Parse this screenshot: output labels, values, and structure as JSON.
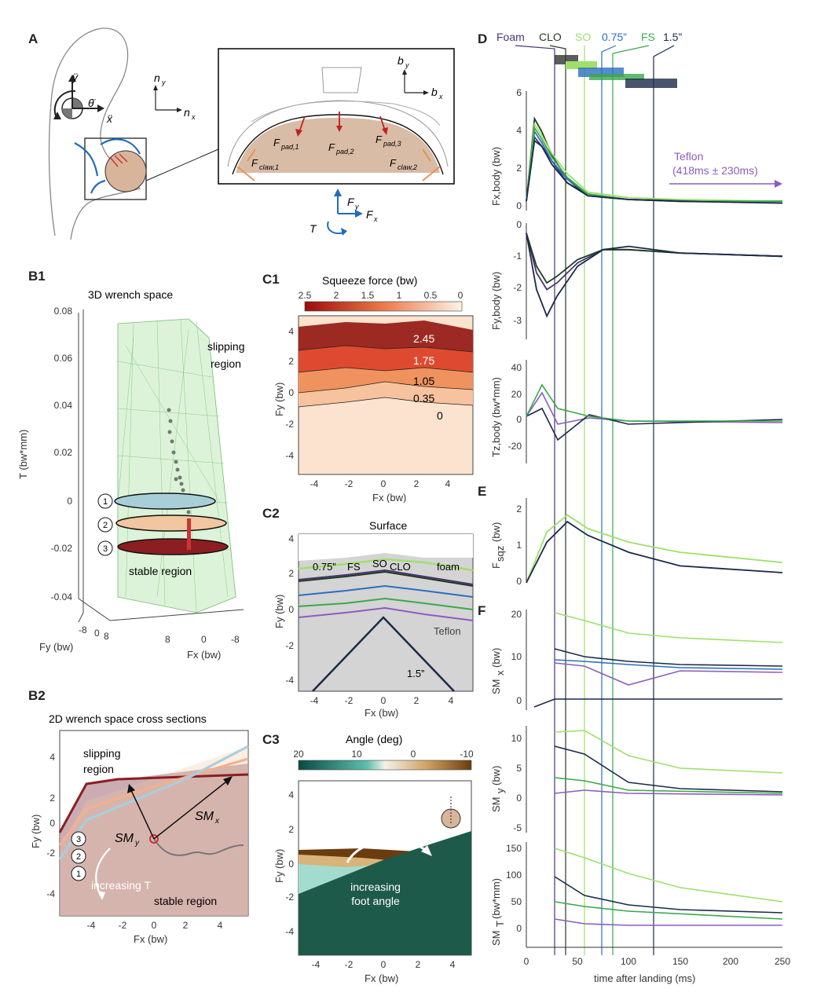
{
  "panels": {
    "A": {
      "label": "A",
      "axes": {
        "ny": "n",
        "ny_sub": "y",
        "nx": "n",
        "nx_sub": "x",
        "by": "b",
        "by_sub": "y",
        "bx": "b",
        "bx_sub": "x"
      },
      "motion": {
        "y": "ÿ",
        "theta": "θ̈",
        "x": "ẍ"
      },
      "forces": {
        "pad1": "F",
        "pad1_sub": "pad,1",
        "pad2": "F",
        "pad2_sub": "pad,2",
        "pad3": "F",
        "pad3_sub": "pad,3",
        "claw1": "F",
        "claw1_sub": "claw,1",
        "claw2": "F",
        "claw2_sub": "claw,2",
        "fy": "F",
        "fy_sub": "y",
        "fx": "F",
        "fx_sub": "x",
        "t": "T"
      }
    },
    "B1": {
      "label": "B1",
      "title": "3D wrench space",
      "ylabel": "T (bw*mm)",
      "yticks": [
        "0.08",
        "0.06",
        "0.04",
        "0.02",
        "0",
        "-0.02",
        "-0.04"
      ],
      "fy_label": "Fy (bw)",
      "fy_ticks": [
        "-8",
        "0",
        "8"
      ],
      "fx_label": "Fx (bw)",
      "fx_ticks": [
        "8",
        "0",
        "-8"
      ],
      "slipping": "slipping\nregion",
      "slipping_l1": "slipping",
      "slipping_l2": "region",
      "stable": "stable region",
      "markers": [
        "1",
        "2",
        "3"
      ]
    },
    "B2": {
      "label": "B2",
      "title": "2D wrench space cross sections",
      "ylabel": "Fy (bw)",
      "xlabel": "Fx (bw)",
      "yticks": [
        "4",
        "2",
        "0",
        "-2",
        "-4"
      ],
      "xticks": [
        "-4",
        "-2",
        "0",
        "2",
        "4"
      ],
      "slipping_l1": "slipping",
      "slipping_l2": "region",
      "stable": "stable region",
      "smy": "SM",
      "smy_sub": "y",
      "smx": "SM",
      "smx_sub": "x",
      "increasing": "increasing T",
      "markers": [
        "3",
        "2",
        "1"
      ]
    },
    "C1": {
      "label": "C1",
      "title": "Squeeze force (bw)",
      "cbar_ticks": [
        "2.5",
        "2",
        "1.5",
        "1",
        "0.5",
        "0"
      ],
      "ylabel": "Fy (bw)",
      "xlabel": "Fx (bw)",
      "yticks": [
        "4",
        "2",
        "0",
        "-2",
        "-4"
      ],
      "xticks": [
        "-4",
        "-2",
        "0",
        "2",
        "4"
      ],
      "contours": [
        "2.45",
        "1.75",
        "1.05",
        "0.35",
        "0"
      ]
    },
    "C2": {
      "label": "C2",
      "title": "Surface",
      "ylabel": "Fy (bw)",
      "xlabel": "Fx (bw)",
      "yticks": [
        "4",
        "2",
        "0",
        "-2",
        "-4"
      ],
      "xticks": [
        "-4",
        "-2",
        "0",
        "2",
        "4"
      ],
      "labels": {
        "in075": "0.75”",
        "fs": "FS",
        "clo": "CLO",
        "foam": "foam",
        "so": "SO",
        "teflon": "Teflon",
        "in15": "1.5”"
      }
    },
    "C3": {
      "label": "C3",
      "title": "Angle (deg)",
      "cbar_ticks": [
        "20",
        "10",
        "0",
        "-10"
      ],
      "ylabel": "Fy (bw)",
      "xlabel": "Fx (bw)",
      "yticks": [
        "4",
        "2",
        "0",
        "-2",
        "-4"
      ],
      "xticks": [
        "-4",
        "-2",
        "0",
        "2",
        "4"
      ],
      "note_l1": "increasing",
      "note_l2": "foot angle"
    },
    "D": {
      "label": "D",
      "legend": {
        "foam": "Foam",
        "clo": "CLO",
        "so": "SO",
        "in075": "0.75”",
        "fs": "FS",
        "in15": "1.5”"
      },
      "teflon_l1": "Teflon",
      "teflon_l2": "(418ms ± 230ms)",
      "fx_label": "Fx,body (bw)",
      "fx_ticks": [
        "6",
        "4",
        "2",
        "0"
      ],
      "fy_label": "Fy,body (bw)",
      "fy_ticks": [
        "0",
        "-1",
        "-2",
        "-3"
      ],
      "tz_label": "Tz,body (bw*mm)",
      "tz_ticks": [
        "40",
        "20",
        "0",
        "-20"
      ]
    },
    "E": {
      "label": "E",
      "ylabel": "F",
      "ylabel_sub": "sqz",
      "ylabel_unit": "(bw)",
      "yticks": [
        "2",
        "1",
        "0"
      ]
    },
    "F": {
      "label": "F",
      "smx_label": "SM",
      "smx_sub": "x",
      "smx_unit": "(bw)",
      "smx_ticks": [
        "20",
        "10",
        "0"
      ],
      "smy_label": "SM",
      "smy_sub": "y",
      "smy_unit": "(bw)",
      "smy_ticks": [
        "10",
        "5",
        "0",
        "-5"
      ],
      "smt_label": "SM",
      "smt_sub": "T",
      "smt_unit": "(bw*mm)",
      "smt_ticks": [
        "150",
        "100",
        "50",
        "0"
      ],
      "xticks": [
        "0",
        "50",
        "100",
        "150",
        "200",
        "250"
      ],
      "xlabel": "time after landing (ms)"
    }
  },
  "colors": {
    "foam": "#4a3470",
    "clo": "#1f3d22",
    "so": "#9ee06a",
    "in075": "#2a6fc0",
    "fs": "#3aa84c",
    "in15": "#1b2a4a",
    "teflon": "#8c5cc0"
  },
  "chart_data": [
    {
      "type": "line",
      "panel": "D-Fx",
      "xlim": [
        0,
        250
      ],
      "ylim": [
        -0.5,
        6
      ],
      "series": [
        {
          "name": "Foam",
          "x": [
            0,
            8,
            15,
            25,
            40,
            60,
            100,
            150,
            250
          ],
          "y": [
            0,
            3.5,
            3.0,
            2.2,
            1.0,
            0.4,
            0.1,
            0.05,
            0
          ]
        },
        {
          "name": "CLO",
          "x": [
            0,
            8,
            15,
            25,
            40,
            60,
            100,
            150,
            250
          ],
          "y": [
            0,
            4.5,
            3.8,
            2.5,
            1.2,
            0.3,
            0.1,
            0.05,
            0
          ]
        },
        {
          "name": "SO",
          "x": [
            0,
            8,
            15,
            25,
            40,
            60,
            100,
            150,
            250
          ],
          "y": [
            0,
            4.2,
            3.6,
            2.6,
            1.5,
            0.5,
            0.2,
            0.1,
            0
          ]
        },
        {
          "name": "0.75”",
          "x": [
            0,
            8,
            15,
            25,
            40,
            60,
            100,
            150,
            250
          ],
          "y": [
            0,
            3.8,
            3.2,
            2.2,
            1.2,
            0.4,
            0.1,
            0,
            0
          ]
        },
        {
          "name": "FS",
          "x": [
            0,
            8,
            15,
            25,
            40,
            60,
            100,
            150,
            250
          ],
          "y": [
            0,
            4.0,
            3.4,
            2.4,
            1.3,
            0.4,
            0.1,
            0,
            0
          ]
        },
        {
          "name": "1.5”",
          "x": [
            0,
            8,
            15,
            25,
            40,
            60,
            100,
            150,
            250
          ],
          "y": [
            0,
            3.3,
            3.0,
            2.0,
            1.0,
            0.3,
            0.1,
            0,
            -0.1
          ]
        }
      ]
    },
    {
      "type": "line",
      "panel": "D-Fy",
      "xlim": [
        0,
        250
      ],
      "ylim": [
        -3.5,
        0
      ],
      "series": [
        {
          "name": "Foam",
          "x": [
            0,
            10,
            20,
            30,
            50,
            75,
            100,
            150,
            250
          ],
          "y": [
            -0.3,
            -1.5,
            -2.0,
            -1.8,
            -1.2,
            -0.8,
            -0.8,
            -0.9,
            -1.0
          ]
        },
        {
          "name": "CLO",
          "x": [
            0,
            10,
            20,
            30,
            50,
            75,
            100,
            150,
            250
          ],
          "y": [
            -0.3,
            -1.3,
            -1.8,
            -1.6,
            -1.1,
            -0.8,
            -0.8,
            -0.9,
            -1.0
          ]
        },
        {
          "name": "1.5”",
          "x": [
            0,
            10,
            20,
            30,
            50,
            75,
            100,
            150,
            250
          ],
          "y": [
            -0.3,
            -2.0,
            -2.8,
            -2.2,
            -1.3,
            -0.8,
            -0.7,
            -0.9,
            -1.0
          ]
        }
      ]
    },
    {
      "type": "line",
      "panel": "E",
      "xlim": [
        0,
        250
      ],
      "ylim": [
        0,
        2.5
      ],
      "series": [
        {
          "name": "SO",
          "x": [
            0,
            20,
            40,
            60,
            100,
            150,
            250
          ],
          "y": [
            0,
            1.5,
            2.0,
            1.6,
            1.2,
            0.9,
            0.6
          ]
        },
        {
          "name": "1.5”",
          "x": [
            0,
            20,
            40,
            60,
            100,
            150,
            250
          ],
          "y": [
            0,
            1.2,
            1.8,
            1.4,
            0.9,
            0.5,
            0.3
          ]
        }
      ]
    }
  ]
}
